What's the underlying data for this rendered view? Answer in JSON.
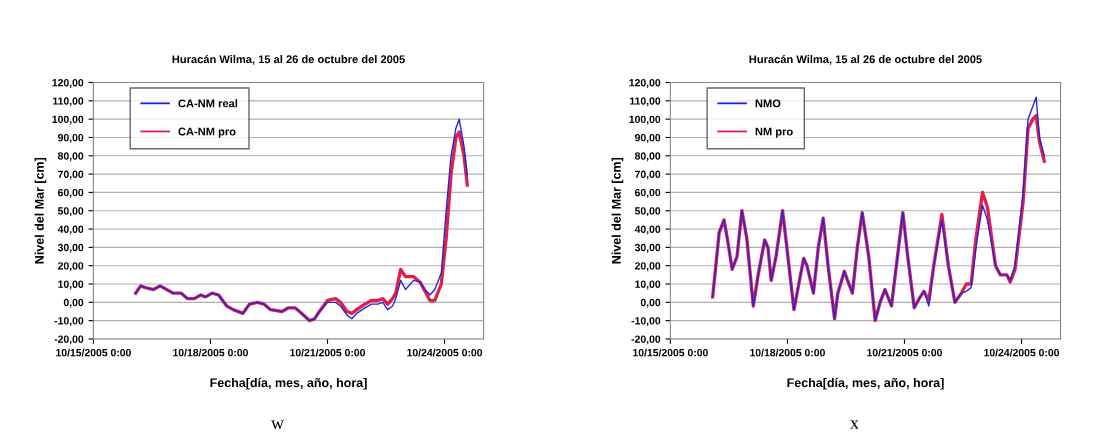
{
  "chart_data": [
    {
      "type": "line",
      "title": "Huracán Wilma, 15 al 26 de octubre del 2005",
      "xlabel": "Fecha[día, mes, año, hora]",
      "ylabel": "Nivel del Mar [cm]",
      "annotations": [
        "w"
      ],
      "x": [
        "2005-10-16T02:00",
        "2005-10-16T05:00",
        "2005-10-16T08:00",
        "2005-10-16T13:00",
        "2005-10-16T17:00",
        "2005-10-16T21:00",
        "2005-10-17T01:00",
        "2005-10-17T06:00",
        "2005-10-17T10:00",
        "2005-10-17T14:00",
        "2005-10-17T18:00",
        "2005-10-17T21:00",
        "2005-10-18T01:00",
        "2005-10-18T05:00",
        "2005-10-18T10:00",
        "2005-10-18T14:00",
        "2005-10-18T20:00",
        "2005-10-19T00:00",
        "2005-10-19T05:00",
        "2005-10-19T09:00",
        "2005-10-19T13:00",
        "2005-10-19T20:00",
        "2005-10-20T00:00",
        "2005-10-20T04:00",
        "2005-10-20T08:00",
        "2005-10-20T13:00",
        "2005-10-20T16:00",
        "2005-10-20T19:00",
        "2005-10-21T00:00",
        "2005-10-21T05:00",
        "2005-10-21T08:00",
        "2005-10-21T12:00",
        "2005-10-21T15:00",
        "2005-10-21T18:00",
        "2005-10-21T23:00",
        "2005-10-22T03:00",
        "2005-10-22T07:00",
        "2005-10-22T10:00",
        "2005-10-22T13:00",
        "2005-10-22T16:00",
        "2005-10-22T18:00",
        "2005-10-22T21:00",
        "2005-10-23T00:00",
        "2005-10-23T05:00",
        "2005-10-23T09:00",
        "2005-10-23T12:00",
        "2005-10-23T15:00",
        "2005-10-23T18:00",
        "2005-10-23T22:00",
        "2005-10-24T01:00",
        "2005-10-24T04:00",
        "2005-10-24T07:00",
        "2005-10-24T09:00",
        "2005-10-24T12:00",
        "2005-10-24T14:00"
      ],
      "series": [
        {
          "name": "CA-NM real",
          "color": "#2424e0",
          "values": [
            5,
            9,
            8,
            7,
            9,
            7,
            5,
            5,
            2,
            2,
            4,
            3,
            5,
            4,
            -2,
            -4,
            -6,
            -1,
            0,
            -1,
            -4,
            -5,
            -3,
            -3,
            -6,
            -10,
            -9,
            -5,
            0,
            0,
            -2,
            -7,
            -9,
            -6,
            -3,
            -1,
            -1,
            0,
            -4,
            -2,
            2,
            12,
            7,
            12,
            11,
            7,
            4,
            7,
            16,
            50,
            80,
            95,
            100,
            85,
            69
          ]
        },
        {
          "name": "CA-NM pro",
          "color": "#e0204a",
          "values": [
            5,
            9,
            8,
            7,
            9,
            7,
            5,
            5,
            2,
            2,
            4,
            3,
            5,
            4,
            -2,
            -4,
            -6,
            -1,
            0,
            -1,
            -4,
            -5,
            -3,
            -3,
            -6,
            -10,
            -9,
            -5,
            1,
            2,
            0,
            -5,
            -6,
            -4,
            -1,
            1,
            1,
            2,
            -1,
            2,
            5,
            18,
            14,
            14,
            11,
            6,
            1,
            1,
            10,
            35,
            70,
            90,
            93,
            80,
            64
          ]
        }
      ],
      "xlim": [
        "2005-10-15T00:00",
        "2005-10-25T00:00"
      ],
      "xticks": [
        {
          "value": "2005-10-15T00:00",
          "label": "10/15/2005 0:00"
        },
        {
          "value": "2005-10-18T00:00",
          "label": "10/18/2005 0:00"
        },
        {
          "value": "2005-10-21T00:00",
          "label": "10/21/2005 0:00"
        },
        {
          "value": "2005-10-24T00:00",
          "label": "10/24/2005 0:00"
        }
      ],
      "ylim": [
        -20,
        120
      ],
      "yticks": [
        {
          "value": -20,
          "label": "-20,00"
        },
        {
          "value": -10,
          "label": "-10,00"
        },
        {
          "value": 0,
          "label": "0,00"
        },
        {
          "value": 10,
          "label": "10,00"
        },
        {
          "value": 20,
          "label": "20,00"
        },
        {
          "value": 30,
          "label": "30,00"
        },
        {
          "value": 40,
          "label": "40,00"
        },
        {
          "value": 50,
          "label": "50,00"
        },
        {
          "value": 60,
          "label": "60,00"
        },
        {
          "value": 70,
          "label": "70,00"
        },
        {
          "value": 80,
          "label": "80,00"
        },
        {
          "value": 90,
          "label": "90,00"
        },
        {
          "value": 100,
          "label": "100,00"
        },
        {
          "value": 110,
          "label": "110,00"
        },
        {
          "value": 120,
          "label": "120,00"
        }
      ],
      "grid": "y",
      "legend": "top left",
      "marker": "none",
      "line_style": "solid"
    },
    {
      "type": "line",
      "title": "Huracán Wilma, 15 al 26 de octubre del 2005",
      "xlabel": "Fecha[día, mes, año, hora]",
      "ylabel": "Nivel del Mar [cm]",
      "annotations": [
        "x"
      ],
      "x": [
        "2005-10-16T02:00",
        "2005-10-16T06:00",
        "2005-10-16T09:00",
        "2005-10-16T11:00",
        "2005-10-16T14:00",
        "2005-10-16T17:00",
        "2005-10-16T20:00",
        "2005-10-16T23:00",
        "2005-10-17T03:00",
        "2005-10-17T06:00",
        "2005-10-17T10:00",
        "2005-10-17T12:00",
        "2005-10-17T14:00",
        "2005-10-17T17:00",
        "2005-10-17T21:00",
        "2005-10-17T23:00",
        "2005-10-18T04:00",
        "2005-10-18T07:00",
        "2005-10-18T10:00",
        "2005-10-18T12:00",
        "2005-10-18T16:00",
        "2005-10-18T19:00",
        "2005-10-18T22:00",
        "2005-10-19T01:00",
        "2005-10-19T05:00",
        "2005-10-19T07:00",
        "2005-10-19T11:00",
        "2005-10-19T13:00",
        "2005-10-19T16:00",
        "2005-10-19T19:00",
        "2005-10-19T22:00",
        "2005-10-20T02:00",
        "2005-10-20T06:00",
        "2005-10-20T09:00",
        "2005-10-20T12:00",
        "2005-10-20T16:00",
        "2005-10-20T19:00",
        "2005-10-20T23:00",
        "2005-10-21T02:00",
        "2005-10-21T06:00",
        "2005-10-21T09:00",
        "2005-10-21T12:00",
        "2005-10-21T15:00",
        "2005-10-21T18:00",
        "2005-10-21T23:00",
        "2005-10-22T03:00",
        "2005-10-22T07:00",
        "2005-10-22T11:00",
        "2005-10-22T14:00",
        "2005-10-22T17:00",
        "2005-10-22T20:00",
        "2005-10-23T00:00",
        "2005-10-23T03:00",
        "2005-10-23T08:00",
        "2005-10-23T11:00",
        "2005-10-23T15:00",
        "2005-10-23T17:00",
        "2005-10-23T20:00",
        "2005-10-24T01:00",
        "2005-10-24T04:00",
        "2005-10-24T07:00",
        "2005-10-24T09:00",
        "2005-10-24T11:00",
        "2005-10-24T14:00"
      ],
      "series": [
        {
          "name": "NMO",
          "color": "#2424e0",
          "values": [
            3,
            38,
            45,
            35,
            18,
            25,
            50,
            35,
            -2,
            15,
            34,
            30,
            12,
            25,
            50,
            35,
            -4,
            10,
            24,
            20,
            5,
            30,
            46,
            20,
            -9,
            5,
            17,
            12,
            5,
            30,
            49,
            25,
            -10,
            0,
            7,
            -2,
            20,
            49,
            25,
            -3,
            2,
            6,
            -2,
            20,
            45,
            20,
            0,
            5,
            6,
            8,
            30,
            53,
            45,
            20,
            15,
            15,
            12,
            20,
            60,
            100,
            107,
            112,
            90,
            80
          ]
        },
        {
          "name": "NM pro",
          "color": "#e0204a",
          "values": [
            3,
            38,
            45,
            35,
            18,
            25,
            50,
            35,
            -2,
            15,
            34,
            30,
            12,
            25,
            50,
            35,
            -4,
            10,
            24,
            20,
            5,
            30,
            46,
            20,
            -9,
            5,
            17,
            12,
            5,
            30,
            49,
            25,
            -10,
            0,
            7,
            -2,
            20,
            49,
            25,
            -3,
            2,
            6,
            1,
            20,
            48,
            20,
            0,
            5,
            10,
            10,
            35,
            60,
            52,
            20,
            15,
            15,
            11,
            18,
            55,
            95,
            100,
            102,
            88,
            77
          ]
        }
      ],
      "xlim": [
        "2005-10-15T00:00",
        "2005-10-25T00:00"
      ],
      "xticks": [
        {
          "value": "2005-10-15T00:00",
          "label": "10/15/2005 0:00"
        },
        {
          "value": "2005-10-18T00:00",
          "label": "10/18/2005 0:00"
        },
        {
          "value": "2005-10-21T00:00",
          "label": "10/21/2005 0:00"
        },
        {
          "value": "2005-10-24T00:00",
          "label": "10/24/2005 0:00"
        }
      ],
      "ylim": [
        -20,
        120
      ],
      "yticks": [
        {
          "value": -20,
          "label": "-20,00"
        },
        {
          "value": -10,
          "label": "-10,00"
        },
        {
          "value": 0,
          "label": "0,00"
        },
        {
          "value": 10,
          "label": "10,00"
        },
        {
          "value": 20,
          "label": "20,00"
        },
        {
          "value": 30,
          "label": "30,00"
        },
        {
          "value": 40,
          "label": "40,00"
        },
        {
          "value": 50,
          "label": "50,00"
        },
        {
          "value": 60,
          "label": "60,00"
        },
        {
          "value": 70,
          "label": "70,00"
        },
        {
          "value": 80,
          "label": "80,00"
        },
        {
          "value": 90,
          "label": "90,00"
        },
        {
          "value": 100,
          "label": "100,00"
        },
        {
          "value": 110,
          "label": "110,00"
        },
        {
          "value": 120,
          "label": "120,00"
        }
      ],
      "grid": "y",
      "legend": "top left",
      "marker": "none",
      "line_style": "solid"
    }
  ]
}
